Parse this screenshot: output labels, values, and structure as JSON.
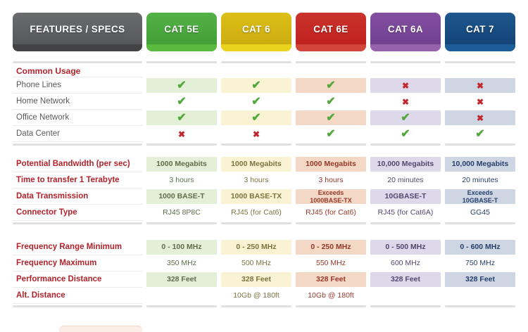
{
  "header": {
    "features_label": "FEATURES / SPECS",
    "features_colors": {
      "body_top": "#6b6c6e",
      "body": "#525356",
      "strip": "#434345"
    },
    "columns": [
      {
        "label": "CAT 5E",
        "body_top": "#53b246",
        "body": "#3f9c35",
        "strip": "#5cb93f",
        "tint": "#e3efd6",
        "text": "#5c6e4e"
      },
      {
        "label": "CAT 6",
        "body_top": "#dcbf17",
        "body": "#c9a80e",
        "strip": "#e9d31c",
        "tint": "#faf3d3",
        "text": "#7b7340"
      },
      {
        "label": "CAT 6E",
        "body_top": "#cb332c",
        "body": "#bd1e1c",
        "strip": "#d2453a",
        "tint": "#f3d9c5",
        "text": "#96372a"
      },
      {
        "label": "CAT 6A",
        "body_top": "#8350a0",
        "body": "#6f3d8f",
        "strip": "#9662ad",
        "tint": "#ded9ea",
        "text": "#53476f"
      },
      {
        "label": "CAT 7",
        "body_top": "#1d578e",
        "body": "#123f73",
        "strip": "#1d5c97",
        "tint": "#ced5e3",
        "text": "#26406b"
      }
    ]
  },
  "marks": {
    "check_glyph": "✔",
    "cross_glyph": "✖",
    "check_color": "#52a83b",
    "cross_color": "#c1272d"
  },
  "sections": [
    {
      "heading": "Common Usage",
      "kind": "marks",
      "label_style": "gray",
      "rows": [
        {
          "label": "Phone Lines",
          "values": [
            "check",
            "check",
            "check",
            "cross",
            "cross"
          ]
        },
        {
          "label": "Home Network",
          "values": [
            "check",
            "check",
            "check",
            "cross",
            "cross"
          ]
        },
        {
          "label": "Office Network",
          "values": [
            "check",
            "check",
            "check",
            "check",
            "cross"
          ]
        },
        {
          "label": "Data Center",
          "values": [
            "cross",
            "cross",
            "check",
            "check",
            "check"
          ]
        }
      ]
    },
    {
      "heading": null,
      "kind": "text",
      "label_style": "red",
      "rows": [
        {
          "label": "Potential Bandwidth (per sec)",
          "values": [
            "1000 Megabits",
            "1000 Megabits",
            "1000 Megabits",
            "10,000 Megabits",
            "10,000 Megabits"
          ]
        },
        {
          "label": "Time to transfer 1 Terabyte",
          "values": [
            "3 hours",
            "3 hours",
            "3 hours",
            "20 minutes",
            "20 minutes"
          ]
        },
        {
          "label": "Data Transmission",
          "values": [
            "1000 BASE-T",
            "1000 BASE-TX",
            "Exceeds\n1000BASE-TX",
            "10GBASE-T",
            "Exceeds\n10GBASE-T"
          ]
        },
        {
          "label": "Connector Type",
          "values": [
            "RJ45 8P8C",
            "RJ45 (for Cat6)",
            "RJ45 (for Cat6)",
            "RJ45 (for Cat6A)",
            "GG45"
          ]
        }
      ]
    },
    {
      "heading": null,
      "kind": "text",
      "label_style": "red",
      "rows": [
        {
          "label": "Frequency Range Minimum",
          "values": [
            "0 - 100 MHz",
            "0 - 250 MHz",
            "0 - 250 MHz",
            "0 - 500 MHz",
            "0 - 600 MHz"
          ]
        },
        {
          "label": "Frequency Maximum",
          "values": [
            "350 MHz",
            "500 MHz",
            "550 MHz",
            "600 MHz",
            "750 MHz"
          ]
        },
        {
          "label": "Performance Distance",
          "values": [
            "328 Feet",
            "328 Feet",
            "328 Feet",
            "328 Feet",
            "328 Feet"
          ]
        },
        {
          "label": "Alt. Distance",
          "values": [
            "",
            "10Gb @ 180ft",
            "10Gb @ 180ft",
            "",
            ""
          ]
        }
      ]
    }
  ],
  "chart_data": {
    "type": "table",
    "columns": [
      "FEATURES / SPECS",
      "CAT 5E",
      "CAT 6",
      "CAT 6E",
      "CAT 6A",
      "CAT 7"
    ],
    "rows": [
      [
        "Common Usage",
        "",
        "",
        "",
        "",
        ""
      ],
      [
        "Phone Lines",
        "yes",
        "yes",
        "yes",
        "no",
        "no"
      ],
      [
        "Home Network",
        "yes",
        "yes",
        "yes",
        "no",
        "no"
      ],
      [
        "Office Network",
        "yes",
        "yes",
        "yes",
        "yes",
        "no"
      ],
      [
        "Data Center",
        "no",
        "no",
        "yes",
        "yes",
        "yes"
      ],
      [
        "Potential Bandwidth (per sec)",
        "1000 Megabits",
        "1000 Megabits",
        "1000 Megabits",
        "10,000 Megabits",
        "10,000 Megabits"
      ],
      [
        "Time to transfer 1 Terabyte",
        "3 hours",
        "3 hours",
        "3 hours",
        "20 minutes",
        "20 minutes"
      ],
      [
        "Data Transmission",
        "1000 BASE-T",
        "1000 BASE-TX",
        "Exceeds 1000BASE-TX",
        "10GBASE-T",
        "Exceeds 10GBASE-T"
      ],
      [
        "Connector Type",
        "RJ45 8P8C",
        "RJ45 (for Cat6)",
        "RJ45 (for Cat6)",
        "RJ45 (for Cat6A)",
        "GG45"
      ],
      [
        "Frequency Range Minimum",
        "0 - 100 MHz",
        "0 - 250 MHz",
        "0 - 250 MHz",
        "0 - 500 MHz",
        "0 - 600 MHz"
      ],
      [
        "Frequency Maximum",
        "350 MHz",
        "500 MHz",
        "550 MHz",
        "600 MHz",
        "750 MHz"
      ],
      [
        "Performance Distance",
        "328 Feet",
        "328 Feet",
        "328 Feet",
        "328 Feet",
        "328 Feet"
      ],
      [
        "Alt. Distance",
        "",
        "10Gb @ 180ft",
        "10Gb @ 180ft",
        "",
        ""
      ]
    ]
  }
}
